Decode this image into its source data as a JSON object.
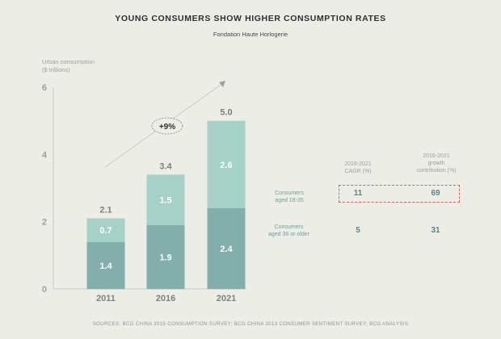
{
  "title": "YOUNG CONSUMERS SHOW HIGHER CONSUMPTION RATES",
  "subtitle": "Fondation Haute Horlogerie",
  "chart_data": {
    "type": "bar",
    "stacked": true,
    "ylabel_lines": [
      "Urban consumption",
      "($ trillions)"
    ],
    "ylim": [
      0,
      6
    ],
    "yticks": [
      0,
      2,
      4,
      6
    ],
    "categories": [
      "2011",
      "2016",
      "2021"
    ],
    "series": [
      {
        "values": [
          1.4,
          1.9,
          2.4
        ],
        "color": "#82aeac"
      },
      {
        "values": [
          0.7,
          1.5,
          2.6
        ],
        "color": "#a6d1c7"
      }
    ],
    "totals": [
      2.1,
      3.4,
      5.0
    ],
    "total_labels": [
      "2.1",
      "3.4",
      "5.0"
    ],
    "growth_annotation": "+9%",
    "table": {
      "headers": [
        [
          "2016-2021",
          "CAGR (%)"
        ],
        [
          "2016-2021",
          "growth",
          "contribution (%)"
        ]
      ],
      "rows": [
        {
          "label": [
            "Consumers",
            "aged 18-35"
          ],
          "cagr": "11",
          "contribution": "69",
          "highlighted": true
        },
        {
          "label": [
            "Consumers",
            "aged 36 or older"
          ],
          "cagr": "5",
          "contribution": "31",
          "highlighted": false
        }
      ]
    }
  },
  "sources": "SOURCES: BCG CHINA 2015 CONSUMPTION SURVEY; BCG CHINA 2013 CONSUMER SENTIMENT SURVEY; BCG ANALYSIS"
}
